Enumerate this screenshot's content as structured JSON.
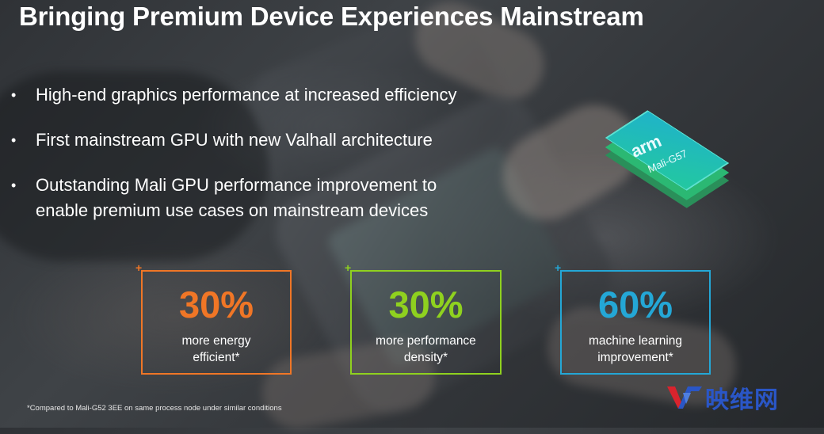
{
  "title": "Bringing Premium Device Experiences Mainstream",
  "bullets": [
    {
      "line1": "High-end graphics performance at increased efficiency"
    },
    {
      "line1": "First mainstream GPU with new Valhall architecture"
    },
    {
      "line1": "Outstanding Mali GPU performance improvement to",
      "line2": "enable premium use cases on mainstream devices"
    }
  ],
  "bullet_symbol": "•",
  "chip": {
    "brand": "arm",
    "model": "Mali-G57"
  },
  "stats": [
    {
      "value": "30%",
      "line1": "more energy",
      "line2": "efficient*",
      "color": "#f07626"
    },
    {
      "value": "30%",
      "line1": "more performance",
      "line2": "density*",
      "color": "#8fd11f"
    },
    {
      "value": "60%",
      "line1": "machine learning",
      "line2": "improvement*",
      "color": "#24a7d6"
    }
  ],
  "plus_symbol": "+",
  "footnote": "*Compared to Mali-G52 3EE on same process node under similar conditions",
  "watermark": {
    "text": "映维网",
    "color": "#2a56c6"
  }
}
